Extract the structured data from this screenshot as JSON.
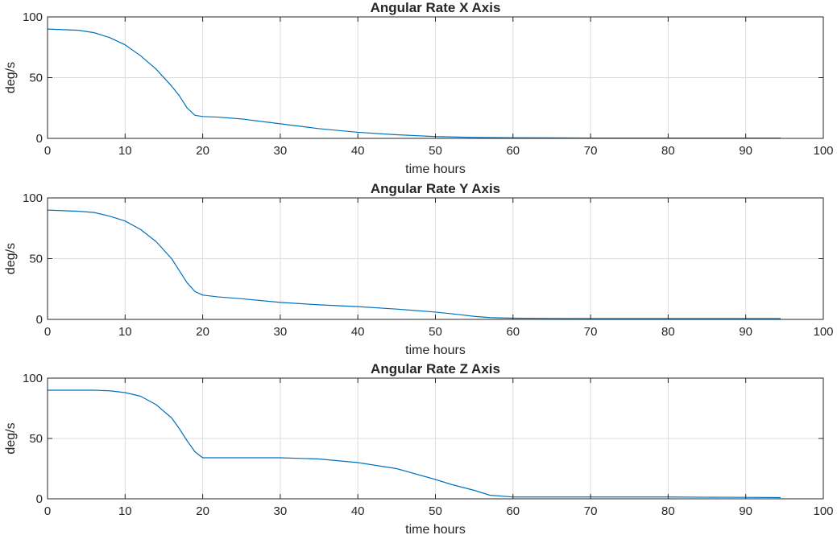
{
  "figure": {
    "background": "#ffffff",
    "axes_color": "#262626",
    "grid_color": "#dcdcdc",
    "line_color": "#0072bd"
  },
  "chart_data": [
    {
      "type": "line",
      "title": "Angular Rate X Axis",
      "xlabel": "time hours",
      "ylabel": "deg/s",
      "xlim": [
        0,
        100
      ],
      "ylim": [
        0,
        100
      ],
      "xticks": [
        "0",
        "10",
        "20",
        "30",
        "40",
        "50",
        "60",
        "70",
        "80",
        "90",
        "100"
      ],
      "yticks": [
        "0",
        "50",
        "100"
      ],
      "grid": true,
      "series": [
        {
          "color": "#0072bd",
          "x": [
            0,
            2,
            4,
            6,
            8,
            10,
            12,
            14,
            16,
            17,
            18,
            19,
            20,
            22,
            25,
            30,
            35,
            40,
            45,
            50,
            55,
            60,
            65,
            70,
            75,
            80,
            85,
            90,
            94.5
          ],
          "y": [
            90,
            89.5,
            89,
            87,
            83,
            77,
            68,
            57,
            43,
            35,
            25,
            19,
            18,
            17.5,
            16,
            12,
            8,
            5,
            3,
            1.5,
            0.8,
            0.5,
            0.4,
            0.3,
            0.3,
            0.3,
            0.3,
            0.3,
            0.3
          ]
        }
      ]
    },
    {
      "type": "line",
      "title": "Angular Rate Y Axis",
      "xlabel": "time hours",
      "ylabel": "deg/s",
      "xlim": [
        0,
        100
      ],
      "ylim": [
        0,
        100
      ],
      "xticks": [
        "0",
        "10",
        "20",
        "30",
        "40",
        "50",
        "60",
        "70",
        "80",
        "90",
        "100"
      ],
      "yticks": [
        "0",
        "50",
        "100"
      ],
      "grid": true,
      "series": [
        {
          "color": "#0072bd",
          "x": [
            0,
            2,
            4,
            6,
            8,
            10,
            12,
            14,
            16,
            17,
            18,
            19,
            20,
            22,
            25,
            30,
            35,
            40,
            45,
            50,
            53,
            55,
            57,
            60,
            65,
            70,
            75,
            80,
            85,
            90,
            94.5
          ],
          "y": [
            90,
            89.5,
            89,
            88,
            85,
            81,
            74,
            64,
            50,
            40,
            30,
            23,
            20,
            18.5,
            17,
            14,
            12,
            10.5,
            8.5,
            6,
            4,
            2.5,
            1.5,
            1,
            0.8,
            0.7,
            0.7,
            0.7,
            0.7,
            0.7,
            0.7
          ]
        }
      ]
    },
    {
      "type": "line",
      "title": "Angular Rate Z Axis",
      "xlabel": "time hours",
      "ylabel": "deg/s",
      "xlim": [
        0,
        100
      ],
      "ylim": [
        0,
        100
      ],
      "xticks": [
        "0",
        "10",
        "20",
        "30",
        "40",
        "50",
        "60",
        "70",
        "80",
        "90",
        "100"
      ],
      "yticks": [
        "0",
        "50",
        "100"
      ],
      "grid": true,
      "series": [
        {
          "color": "#0072bd",
          "x": [
            0,
            2,
            4,
            6,
            8,
            10,
            12,
            14,
            16,
            17,
            18,
            19,
            20,
            22,
            25,
            30,
            35,
            40,
            45,
            50,
            52,
            55,
            57,
            60,
            65,
            70,
            75,
            80,
            85,
            90,
            94.5
          ],
          "y": [
            90,
            90,
            90,
            90,
            89.5,
            88,
            85,
            78,
            67,
            58,
            48,
            39,
            34,
            34,
            34,
            34,
            33,
            30,
            25,
            16,
            12,
            7,
            3,
            1.5,
            1.5,
            1.5,
            1.5,
            1.5,
            1.3,
            1.2,
            1
          ]
        }
      ]
    }
  ]
}
